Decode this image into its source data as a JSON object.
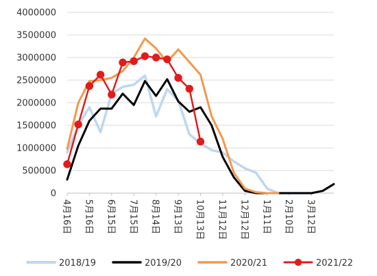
{
  "chart_data": {
    "type": "line",
    "title": "",
    "xlabel": "",
    "ylabel": "",
    "ylim": [
      0,
      4000000
    ],
    "yticks": [
      0,
      500000,
      1000000,
      1500000,
      2000000,
      2500000,
      3000000,
      3500000,
      4000000
    ],
    "ytick_labels": [
      "0",
      "500000",
      "1000000",
      "1500000",
      "2000000",
      "2500000",
      "3000000",
      "3500000",
      "4000000"
    ],
    "x_count": 25,
    "x_tick_labels": [
      {
        "index": 0,
        "label": "4月16日"
      },
      {
        "index": 2,
        "label": "5月16日"
      },
      {
        "index": 4,
        "label": "6月15日"
      },
      {
        "index": 6,
        "label": "7月15日"
      },
      {
        "index": 8,
        "label": "8月14日"
      },
      {
        "index": 10,
        "label": "9月13日"
      },
      {
        "index": 12,
        "label": "10月13日"
      },
      {
        "index": 14,
        "label": "11月12日"
      },
      {
        "index": 16,
        "label": "12月12日"
      },
      {
        "index": 18,
        "label": "1月11日"
      },
      {
        "index": 20,
        "label": "2月10日"
      },
      {
        "index": 22,
        "label": "3月12日"
      }
    ],
    "grid": true,
    "legend_position": "bottom",
    "series": [
      {
        "name": "2018/19",
        "color": "#bdd7ee",
        "width": 3.5,
        "marker": false,
        "values": [
          900000,
          1500000,
          1900000,
          1350000,
          2200000,
          2350000,
          2400000,
          2600000,
          1700000,
          2300000,
          2050000,
          1300000,
          1100000,
          950000,
          900000,
          700000,
          550000,
          450000,
          100000,
          0,
          0,
          0,
          0,
          50000,
          200000
        ]
      },
      {
        "name": "2019/20",
        "color": "#000000",
        "width": 3,
        "marker": false,
        "values": [
          300000,
          1050000,
          1600000,
          1870000,
          1870000,
          2200000,
          1950000,
          2480000,
          2150000,
          2520000,
          2030000,
          1800000,
          1900000,
          1500000,
          800000,
          350000,
          50000,
          0,
          0,
          0,
          0,
          0,
          0,
          50000,
          200000
        ]
      },
      {
        "name": "2020/21",
        "color": "#f4974a",
        "width": 3,
        "marker": false,
        "values": [
          980000,
          2000000,
          2480000,
          2500000,
          2550000,
          2700000,
          3000000,
          3420000,
          3200000,
          2900000,
          3180000,
          2900000,
          2620000,
          1700000,
          1200000,
          450000,
          100000,
          20000,
          0,
          0,
          null,
          null,
          null,
          null,
          null
        ]
      },
      {
        "name": "2021/22",
        "color": "#e31b1b",
        "width": 2.5,
        "marker": true,
        "values": [
          640000,
          1520000,
          2370000,
          2620000,
          2180000,
          2890000,
          2920000,
          3030000,
          3000000,
          2960000,
          2550000,
          2310000,
          1140000,
          null,
          null,
          null,
          null,
          null,
          null,
          null,
          null,
          null,
          null,
          null,
          null
        ]
      }
    ]
  }
}
